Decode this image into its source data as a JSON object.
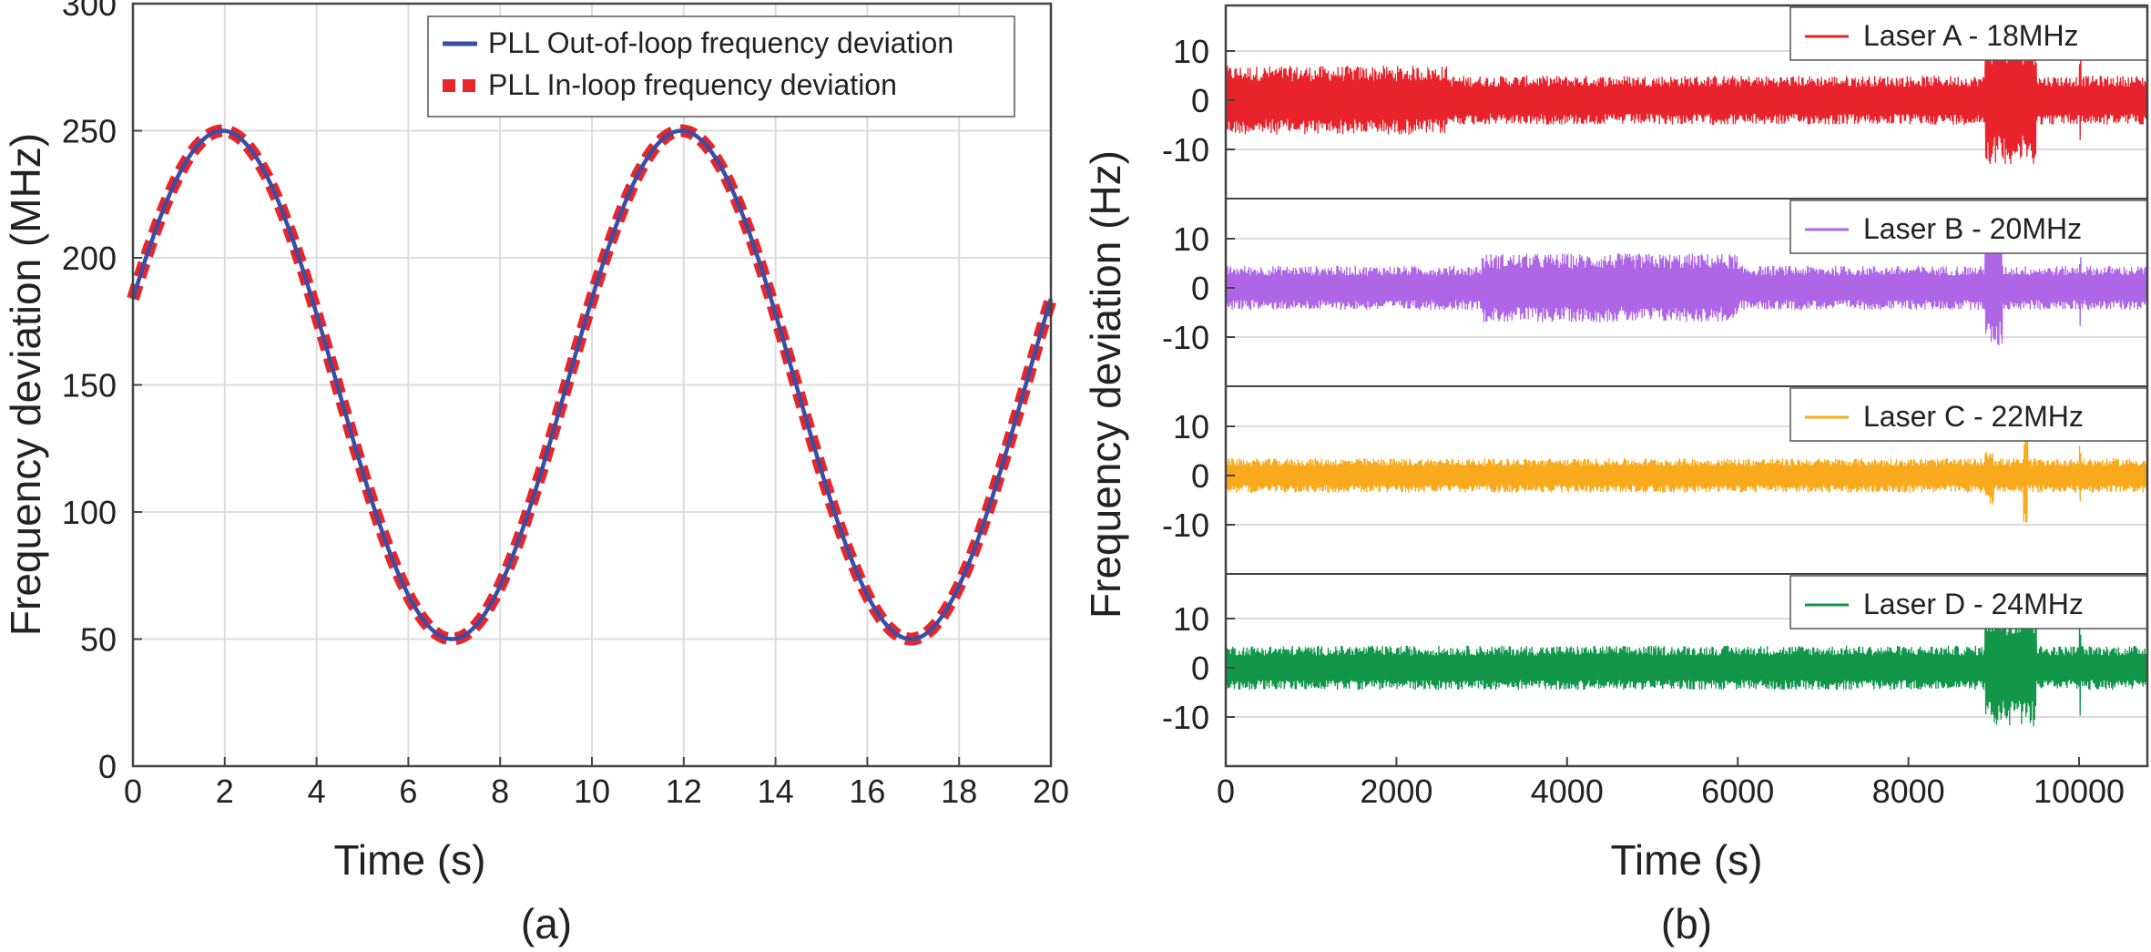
{
  "chart_data": [
    {
      "type": "line",
      "panel_label": "(a)",
      "xlabel": "Time (s)",
      "ylabel": "Frequency deviation (MHz)",
      "xlim": [
        0,
        20
      ],
      "ylim": [
        0,
        300
      ],
      "xticks": [
        "0",
        "2",
        "4",
        "6",
        "8",
        "10",
        "12",
        "14",
        "16",
        "18",
        "20"
      ],
      "yticks": [
        "0",
        "50",
        "100",
        "150",
        "200",
        "250",
        "300"
      ],
      "grid": true,
      "legend_position": "top-right",
      "signal": {
        "offset": 150,
        "amplitude": 100,
        "period_s": 10,
        "peak_at_s": 1.95
      },
      "series": [
        {
          "name": "PLL Out-of-loop frequency deviation",
          "color": "#3a4ea6",
          "style": "solid",
          "x": [
            0,
            1,
            2,
            3,
            4,
            5,
            6,
            7,
            8,
            9,
            10,
            11,
            12,
            13,
            14,
            15,
            16,
            17,
            18,
            19,
            20
          ],
          "y": [
            191,
            236,
            250,
            220,
            165,
            105,
            60,
            50,
            78,
            134,
            191,
            236,
            250,
            220,
            165,
            105,
            60,
            50,
            78,
            134,
            191
          ]
        },
        {
          "name": "PLL In-loop frequency deviation",
          "color": "#e8262a",
          "style": "dashed",
          "x": [
            0,
            1,
            2,
            3,
            4,
            5,
            6,
            7,
            8,
            9,
            10,
            11,
            12,
            13,
            14,
            15,
            16,
            17,
            18,
            19,
            20
          ],
          "y": [
            191,
            236,
            250,
            220,
            165,
            105,
            60,
            50,
            78,
            134,
            191,
            236,
            250,
            220,
            165,
            105,
            60,
            50,
            78,
            134,
            191
          ]
        }
      ]
    },
    {
      "type": "line",
      "panel_label": "(b)",
      "xlabel": "Time (s)",
      "ylabel": "Frequency deviation (Hz)",
      "xlim": [
        0,
        10800
      ],
      "xticks": [
        "0",
        "2000",
        "4000",
        "6000",
        "8000",
        "10000"
      ],
      "subplot_yticks": [
        "10",
        "0",
        "-10"
      ],
      "subplot_ylim": [
        -15,
        15
      ],
      "subplots": [
        {
          "name": "Laser A - 18MHz",
          "color": "#e8232b",
          "noise_amplitude_hz": 5,
          "bursts": [
            {
              "t_from": 0,
              "t_to": 2600,
              "amplitude_hz": 7
            },
            {
              "t_from": 8900,
              "t_to": 9500,
              "amplitude_hz": 13
            },
            {
              "t_from": 10000,
              "t_to": 10020,
              "amplitude_hz": 12
            }
          ]
        },
        {
          "name": "Laser B - 20MHz",
          "color": "#ae66e6",
          "noise_amplitude_hz": 4.5,
          "bursts": [
            {
              "t_from": 3000,
              "t_to": 6000,
              "amplitude_hz": 7
            },
            {
              "t_from": 8900,
              "t_to": 9100,
              "amplitude_hz": 12
            },
            {
              "t_from": 10000,
              "t_to": 10020,
              "amplitude_hz": 8
            }
          ]
        },
        {
          "name": "Laser C - 22MHz",
          "color": "#f9aa1c",
          "noise_amplitude_hz": 3.5,
          "bursts": [
            {
              "t_from": 8900,
              "t_to": 9000,
              "amplitude_hz": 6
            },
            {
              "t_from": 9350,
              "t_to": 9400,
              "amplitude_hz": 10
            },
            {
              "t_from": 10000,
              "t_to": 10020,
              "amplitude_hz": 7
            }
          ]
        },
        {
          "name": "Laser D - 24MHz",
          "color": "#12964a",
          "noise_amplitude_hz": 4.5,
          "bursts": [
            {
              "t_from": 8900,
              "t_to": 9500,
              "amplitude_hz": 12
            },
            {
              "t_from": 10000,
              "t_to": 10020,
              "amplitude_hz": 12
            }
          ]
        }
      ]
    }
  ]
}
